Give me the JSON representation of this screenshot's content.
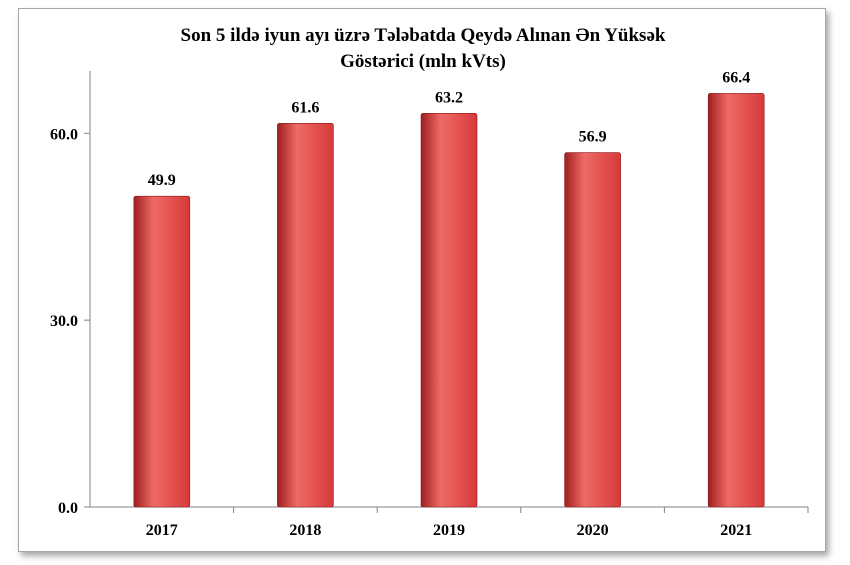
{
  "chart_data": {
    "type": "bar",
    "title_lines": [
      "Son 5 ildə iyun ayı üzrə Tələbatda Qeydə Alınan Ən Yüksək",
      "Göstərici (mln kVts)"
    ],
    "categories": [
      "2017",
      "2018",
      "2019",
      "2020",
      "2021"
    ],
    "values": [
      49.9,
      61.6,
      63.2,
      56.9,
      66.4
    ],
    "data_labels": [
      "49.9",
      "61.6",
      "63.2",
      "56.9",
      "66.4"
    ],
    "yticks": [
      0,
      30,
      60
    ],
    "ytick_labels": [
      "0.0",
      "30.0",
      "60.0"
    ],
    "ylim": [
      0,
      70
    ],
    "grid": false,
    "legend": "none",
    "bar_color": "#d63a3a",
    "bar_color_dark": "#9e1f1f",
    "bar_color_light": "#ef6a66"
  }
}
